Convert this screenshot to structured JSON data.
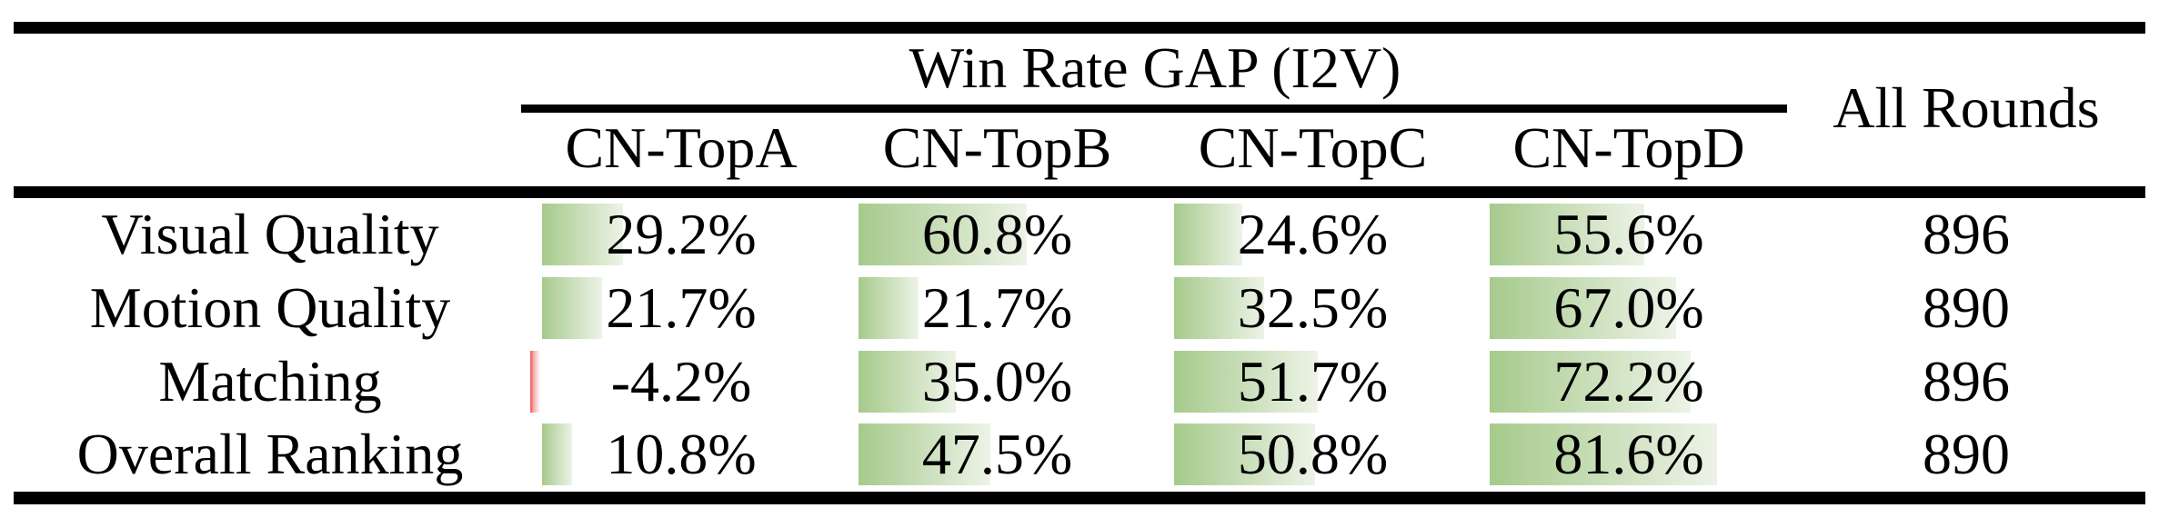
{
  "colors": {
    "bar_gradient_start": "#a6ca8c",
    "bar_gradient_end": "#edf3e7",
    "negative_bar_red": "#e84b4b",
    "rule_black": "#000000"
  },
  "table": {
    "header": {
      "group_title": "Win Rate GAP (I2V)",
      "all_rounds": "All Rounds",
      "columns": [
        "CN-TopA",
        "CN-TopB",
        "CN-TopC",
        "CN-TopD"
      ]
    },
    "rows": [
      {
        "label": "Visual Quality",
        "cells": [
          {
            "value": "29.2%",
            "bar": "29.2%"
          },
          {
            "value": "60.8%",
            "bar": "60.8%"
          },
          {
            "value": "24.6%",
            "bar": "24.6%"
          },
          {
            "value": "55.6%",
            "bar": "55.6%"
          }
        ],
        "all_rounds": "896"
      },
      {
        "label": "Motion Quality",
        "cells": [
          {
            "value": "21.7%",
            "bar": "21.7%"
          },
          {
            "value": "21.7%",
            "bar": "21.7%"
          },
          {
            "value": "32.5%",
            "bar": "32.5%"
          },
          {
            "value": "67.0%",
            "bar": "67.0%"
          }
        ],
        "all_rounds": "890"
      },
      {
        "label": "Matching",
        "cells": [
          {
            "value": "-4.2%",
            "bar": "4.2%",
            "negative": true
          },
          {
            "value": "35.0%",
            "bar": "35.0%"
          },
          {
            "value": "51.7%",
            "bar": "51.7%"
          },
          {
            "value": "72.2%",
            "bar": "72.2%"
          }
        ],
        "all_rounds": "896"
      },
      {
        "label": "Overall Ranking",
        "cells": [
          {
            "value": "10.8%",
            "bar": "10.8%"
          },
          {
            "value": "47.5%",
            "bar": "47.5%"
          },
          {
            "value": "50.8%",
            "bar": "50.8%"
          },
          {
            "value": "81.6%",
            "bar": "81.6%"
          }
        ],
        "all_rounds": "890"
      }
    ]
  },
  "chart_data": {
    "type": "table",
    "title": "Win Rate GAP (I2V)",
    "categories": [
      "CN-TopA",
      "CN-TopB",
      "CN-TopC",
      "CN-TopD",
      "All Rounds"
    ],
    "series": [
      {
        "name": "Visual Quality",
        "values": [
          29.2,
          60.8,
          24.6,
          55.6
        ],
        "all_rounds": 896
      },
      {
        "name": "Motion Quality",
        "values": [
          21.7,
          21.7,
          32.5,
          67.0
        ],
        "all_rounds": 890
      },
      {
        "name": "Matching",
        "values": [
          -4.2,
          35.0,
          51.7,
          72.2
        ],
        "all_rounds": 896
      },
      {
        "name": "Overall Ranking",
        "values": [
          10.8,
          47.5,
          50.8,
          81.6
        ],
        "all_rounds": 890
      }
    ],
    "value_unit": "%",
    "bar_scale": [
      0,
      100
    ],
    "notes": "in-cell gradient data bars; negative value rendered as red bar left of axis"
  }
}
